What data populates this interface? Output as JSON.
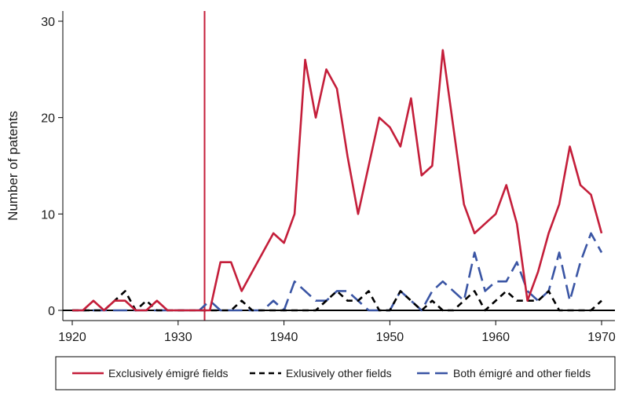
{
  "chart_data": {
    "type": "line",
    "title": "",
    "xlabel": "",
    "ylabel": "Number of patents",
    "xlim": [
      1920,
      1970
    ],
    "ylim": [
      0,
      30
    ],
    "xticks": [
      1920,
      1930,
      1940,
      1950,
      1960,
      1970
    ],
    "yticks": [
      0,
      10,
      20,
      30
    ],
    "vline": 1932.5,
    "x": [
      1920,
      1921,
      1922,
      1923,
      1924,
      1925,
      1926,
      1927,
      1928,
      1929,
      1930,
      1931,
      1932,
      1933,
      1934,
      1935,
      1936,
      1937,
      1938,
      1939,
      1940,
      1941,
      1942,
      1943,
      1944,
      1945,
      1946,
      1947,
      1948,
      1949,
      1950,
      1951,
      1952,
      1953,
      1954,
      1955,
      1956,
      1957,
      1958,
      1959,
      1960,
      1961,
      1962,
      1963,
      1964,
      1965,
      1966,
      1967,
      1968,
      1969,
      1970
    ],
    "series": [
      {
        "name": "Exclusively émigré fields",
        "color": "#c41e3a",
        "dash": "solid",
        "values": [
          0,
          0,
          1,
          0,
          1,
          1,
          0,
          0,
          1,
          0,
          0,
          0,
          0,
          0,
          5,
          5,
          2,
          4,
          6,
          8,
          7,
          10,
          26,
          20,
          25,
          23,
          16,
          10,
          15,
          20,
          19,
          17,
          22,
          14,
          15,
          27,
          19,
          11,
          8,
          9,
          10,
          13,
          9,
          1,
          4,
          8,
          11,
          17,
          13,
          12,
          8
        ]
      },
      {
        "name": "Exlusively other fields",
        "color": "#000000",
        "dash": "dashed",
        "values": [
          0,
          0,
          0,
          0,
          1,
          2,
          0,
          1,
          0,
          0,
          0,
          0,
          0,
          0,
          0,
          0,
          1,
          0,
          0,
          0,
          0,
          0,
          0,
          0,
          1,
          2,
          1,
          1,
          2,
          0,
          0,
          2,
          1,
          0,
          1,
          0,
          0,
          1,
          2,
          0,
          1,
          2,
          1,
          1,
          1,
          2,
          0,
          0,
          0,
          0,
          1
        ]
      },
      {
        "name": "Both émigré and other fields",
        "color": "#3a55a4",
        "dash": "longdash",
        "values": [
          0,
          0,
          0,
          0,
          0,
          0,
          0,
          0,
          0,
          0,
          0,
          0,
          0,
          1,
          0,
          0,
          0,
          0,
          0,
          1,
          0,
          3,
          2,
          1,
          1,
          2,
          2,
          1,
          0,
          0,
          0,
          2,
          1,
          0,
          2,
          3,
          2,
          1,
          6,
          2,
          3,
          3,
          5,
          2,
          1,
          2,
          6,
          1,
          5,
          8,
          6
        ]
      }
    ],
    "legend": {
      "position": "bottom"
    }
  }
}
